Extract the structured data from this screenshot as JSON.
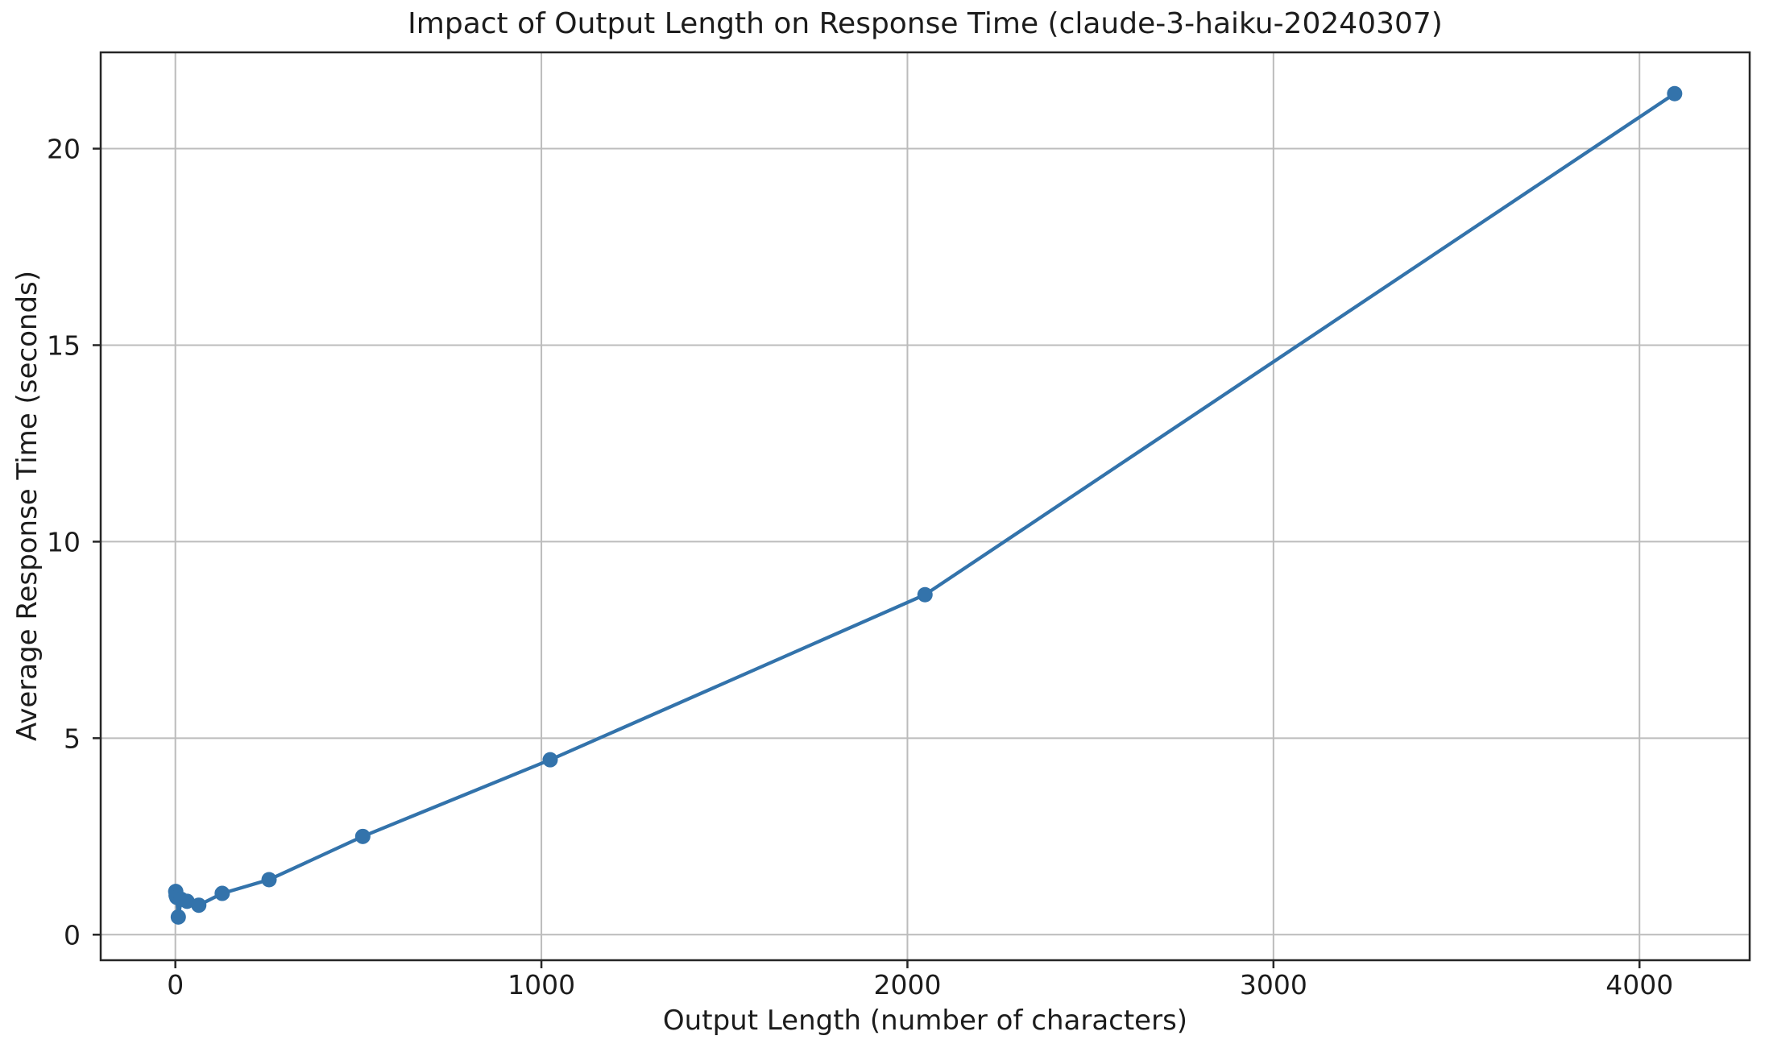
{
  "page": {
    "background": "#ffffff"
  },
  "chart_data": {
    "type": "line",
    "title": "Impact of Output Length on Response Time (claude-3-haiku-20240307)",
    "xlabel": "Output Length (number of characters)",
    "ylabel": "Average Response Time (seconds)",
    "series": [
      {
        "name": "average-response-time",
        "x": [
          1,
          2,
          4,
          8,
          16,
          32,
          64,
          128,
          256,
          512,
          1024,
          2048,
          4096
        ],
        "y": [
          1.1,
          1.0,
          0.95,
          0.45,
          0.9,
          0.85,
          0.75,
          1.05,
          1.4,
          2.5,
          4.45,
          8.65,
          21.4
        ],
        "color": "#3373ab",
        "marker": "circle"
      }
    ],
    "xticks": [
      0,
      1000,
      2000,
      3000,
      4000
    ],
    "yticks": [
      0,
      5,
      10,
      15,
      20
    ],
    "xlim": [
      -204,
      4301
    ],
    "ylim": [
      -0.65,
      22.45
    ],
    "grid": true,
    "legend_position": "none",
    "colors": {
      "grid": "#bcbcbc",
      "spine": "#262626",
      "text": "#1c1c1c"
    }
  }
}
